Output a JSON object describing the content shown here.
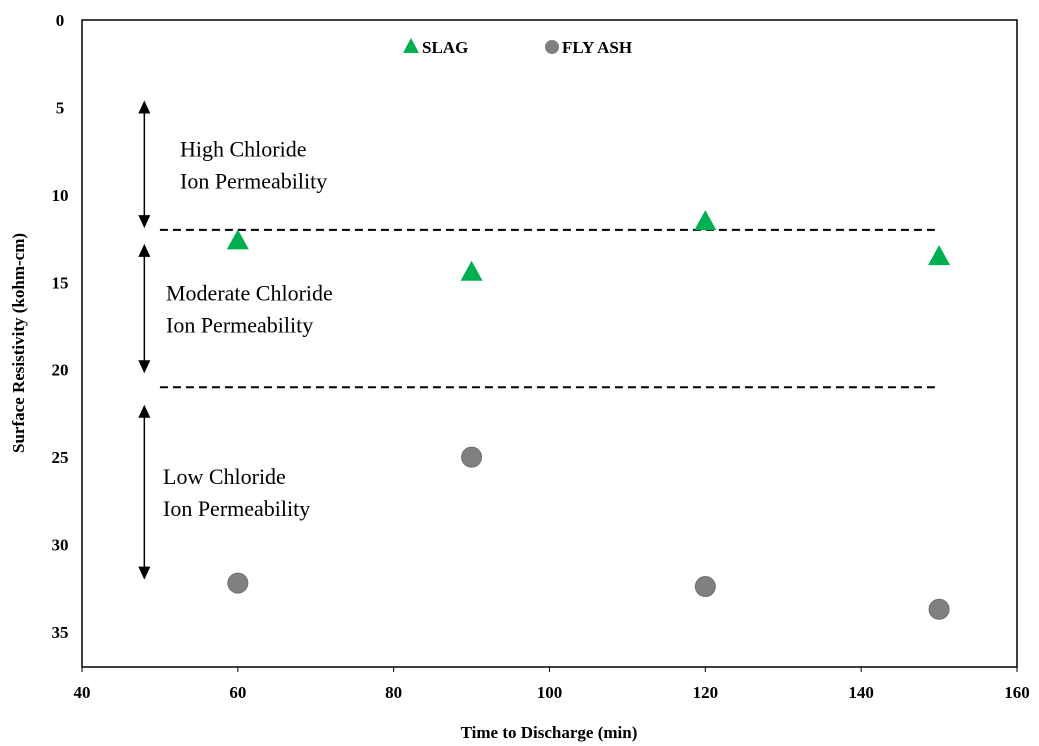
{
  "chart_data": {
    "type": "scatter",
    "xlabel": "Time to Discharge (min)",
    "ylabel": "Surface Resistivity (kohm-cm)",
    "xlim": [
      40,
      160
    ],
    "ylim": [
      0,
      37
    ],
    "y_axis_inverted": true,
    "x_ticks": [
      "40",
      "60",
      "80",
      "100",
      "120",
      "140",
      "160"
    ],
    "y_ticks": [
      "0",
      "5",
      "10",
      "15",
      "20",
      "25",
      "30",
      "35"
    ],
    "grid": false,
    "legend_position": "top-center",
    "series": [
      {
        "name": "SLAG",
        "marker": "triangle",
        "color": "#00B050",
        "x": [
          60,
          90,
          120,
          150
        ],
        "y": [
          12.6,
          14.4,
          11.5,
          13.5
        ]
      },
      {
        "name": "FLY ASH",
        "marker": "circle",
        "color": "#808080",
        "x": [
          60,
          90,
          120,
          150
        ],
        "y": [
          32.2,
          25.0,
          32.4,
          33.7
        ]
      }
    ],
    "thresholds": [
      {
        "y": 12,
        "x_range": [
          50,
          150
        ],
        "style": "dashed"
      },
      {
        "y": 21,
        "x_range": [
          50,
          150
        ],
        "style": "dashed"
      }
    ],
    "annotations": [
      {
        "lines": [
          "High Chloride",
          "Ion Permeability"
        ],
        "x_min": 48,
        "y_range": [
          4.6,
          11.9
        ]
      },
      {
        "lines": [
          "Moderate Chloride",
          "Ion Permeability"
        ],
        "x_min": 48,
        "y_range": [
          12.8,
          20.2
        ]
      },
      {
        "lines": [
          "Low Chloride",
          "Ion Permeability"
        ],
        "x_min": 48,
        "y_range": [
          22.0,
          32.0
        ]
      }
    ]
  }
}
